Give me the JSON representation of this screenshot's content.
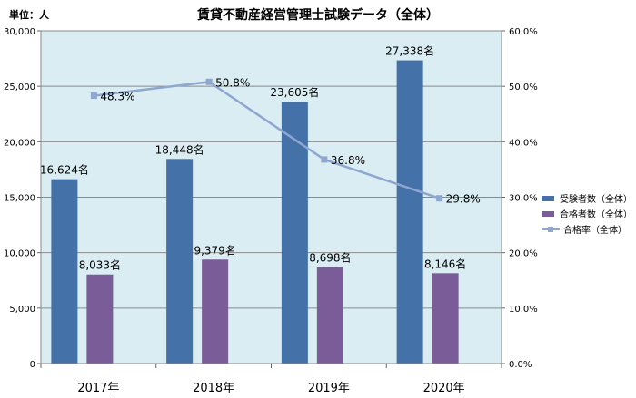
{
  "unit_label": "単位：人",
  "chart_data": {
    "type": "bar",
    "title": "賃貸不動産経営管理士試験データ（全体）",
    "categories": [
      "2017年",
      "2018年",
      "2019年",
      "2020年"
    ],
    "series": [
      {
        "name": "受験者数（全体）",
        "type": "bar",
        "values": [
          16624,
          18448,
          23605,
          27338
        ],
        "labels": [
          "16,624名",
          "18,448名",
          "23,605名",
          "27,338名"
        ],
        "color": "#4472a8"
      },
      {
        "name": "合格者数（全体）",
        "type": "bar",
        "values": [
          8033,
          9379,
          8698,
          8146
        ],
        "labels": [
          "8,033名",
          "9,379名",
          "8,698名",
          "8,146名"
        ],
        "color": "#7a5c99"
      },
      {
        "name": "合格率（全体）",
        "type": "line",
        "axis": "right",
        "values": [
          48.3,
          50.8,
          36.8,
          29.8
        ],
        "labels": [
          "48.3%",
          "50.8%",
          "36.8%",
          "29.8%"
        ],
        "color": "#8fa6d0"
      }
    ],
    "y_left": {
      "ylim": [
        0,
        30000
      ],
      "ticks": [
        "0",
        "5,000",
        "10,000",
        "15,000",
        "20,000",
        "25,000",
        "30,000"
      ]
    },
    "y_right": {
      "ylim": [
        0,
        60
      ],
      "ticks": [
        "0.0%",
        "10.0%",
        "20.0%",
        "30.0%",
        "40.0%",
        "50.0%",
        "60.0%"
      ]
    },
    "grid": true,
    "legend": "right",
    "plot_background": "#d9edf3"
  }
}
